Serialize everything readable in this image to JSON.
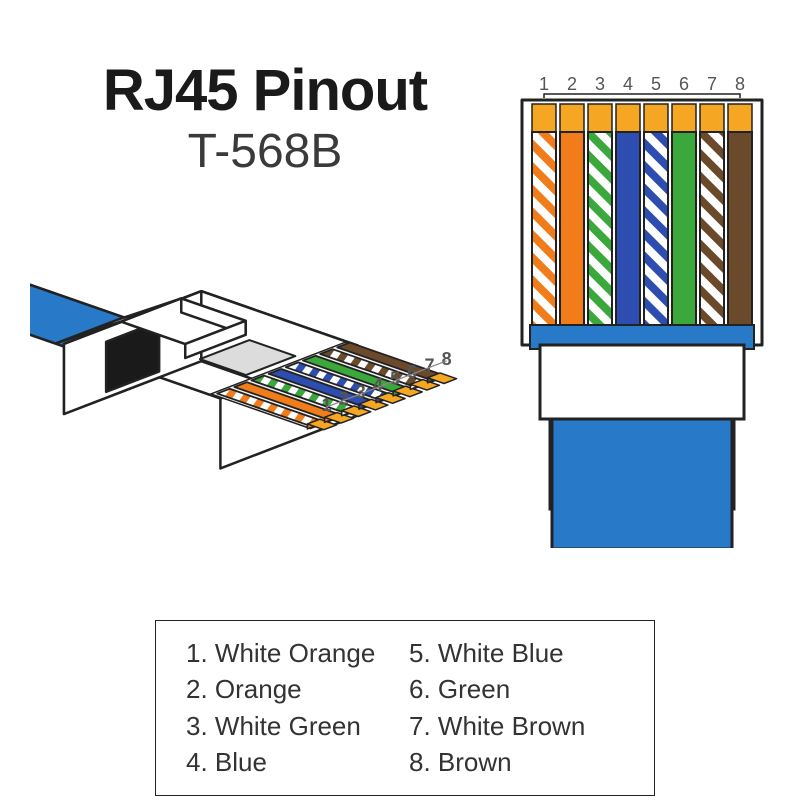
{
  "title": {
    "main": "RJ45 Pinout",
    "sub": "T-568B"
  },
  "colors": {
    "stroke": "#222222",
    "cable": "#2879c8",
    "contact": "#f5a623",
    "wires": [
      {
        "pin": 1,
        "type": "stripe",
        "color": "#f07d1a",
        "label": "White Orange"
      },
      {
        "pin": 2,
        "type": "solid",
        "color": "#f07d1a",
        "label": "Orange"
      },
      {
        "pin": 3,
        "type": "stripe",
        "color": "#3aa83a",
        "label": "White Green"
      },
      {
        "pin": 4,
        "type": "solid",
        "color": "#2d4db0",
        "label": "Blue"
      },
      {
        "pin": 5,
        "type": "stripe",
        "color": "#2d4db0",
        "label": "White Blue"
      },
      {
        "pin": 6,
        "type": "solid",
        "color": "#3aa83a",
        "label": "Green"
      },
      {
        "pin": 7,
        "type": "stripe",
        "color": "#6b4a2b",
        "label": "White Brown"
      },
      {
        "pin": 8,
        "type": "solid",
        "color": "#6b4a2b",
        "label": "Brown"
      }
    ]
  },
  "front": {
    "pin_labels": [
      "1",
      "2",
      "3",
      "4",
      "5",
      "6",
      "7",
      "8"
    ],
    "wire_width": 24,
    "wire_gap": 4,
    "contact_height": 28,
    "wire_height": 225
  },
  "legend": {
    "col1": [
      "1. White Orange",
      "2. Orange",
      "3. White Green",
      "4. Blue"
    ],
    "col2": [
      "5. White Blue",
      "6. Green",
      "7. White Brown",
      "8. Brown"
    ]
  },
  "iso": {
    "pin_labels": [
      "1",
      "2",
      "3",
      "4",
      "5",
      "6",
      "7",
      "8"
    ]
  },
  "styling": {
    "title_fontsize": 58,
    "subtitle_fontsize": 48,
    "legend_fontsize": 26,
    "pin_label_fontsize": 18,
    "background": "#ffffff"
  }
}
